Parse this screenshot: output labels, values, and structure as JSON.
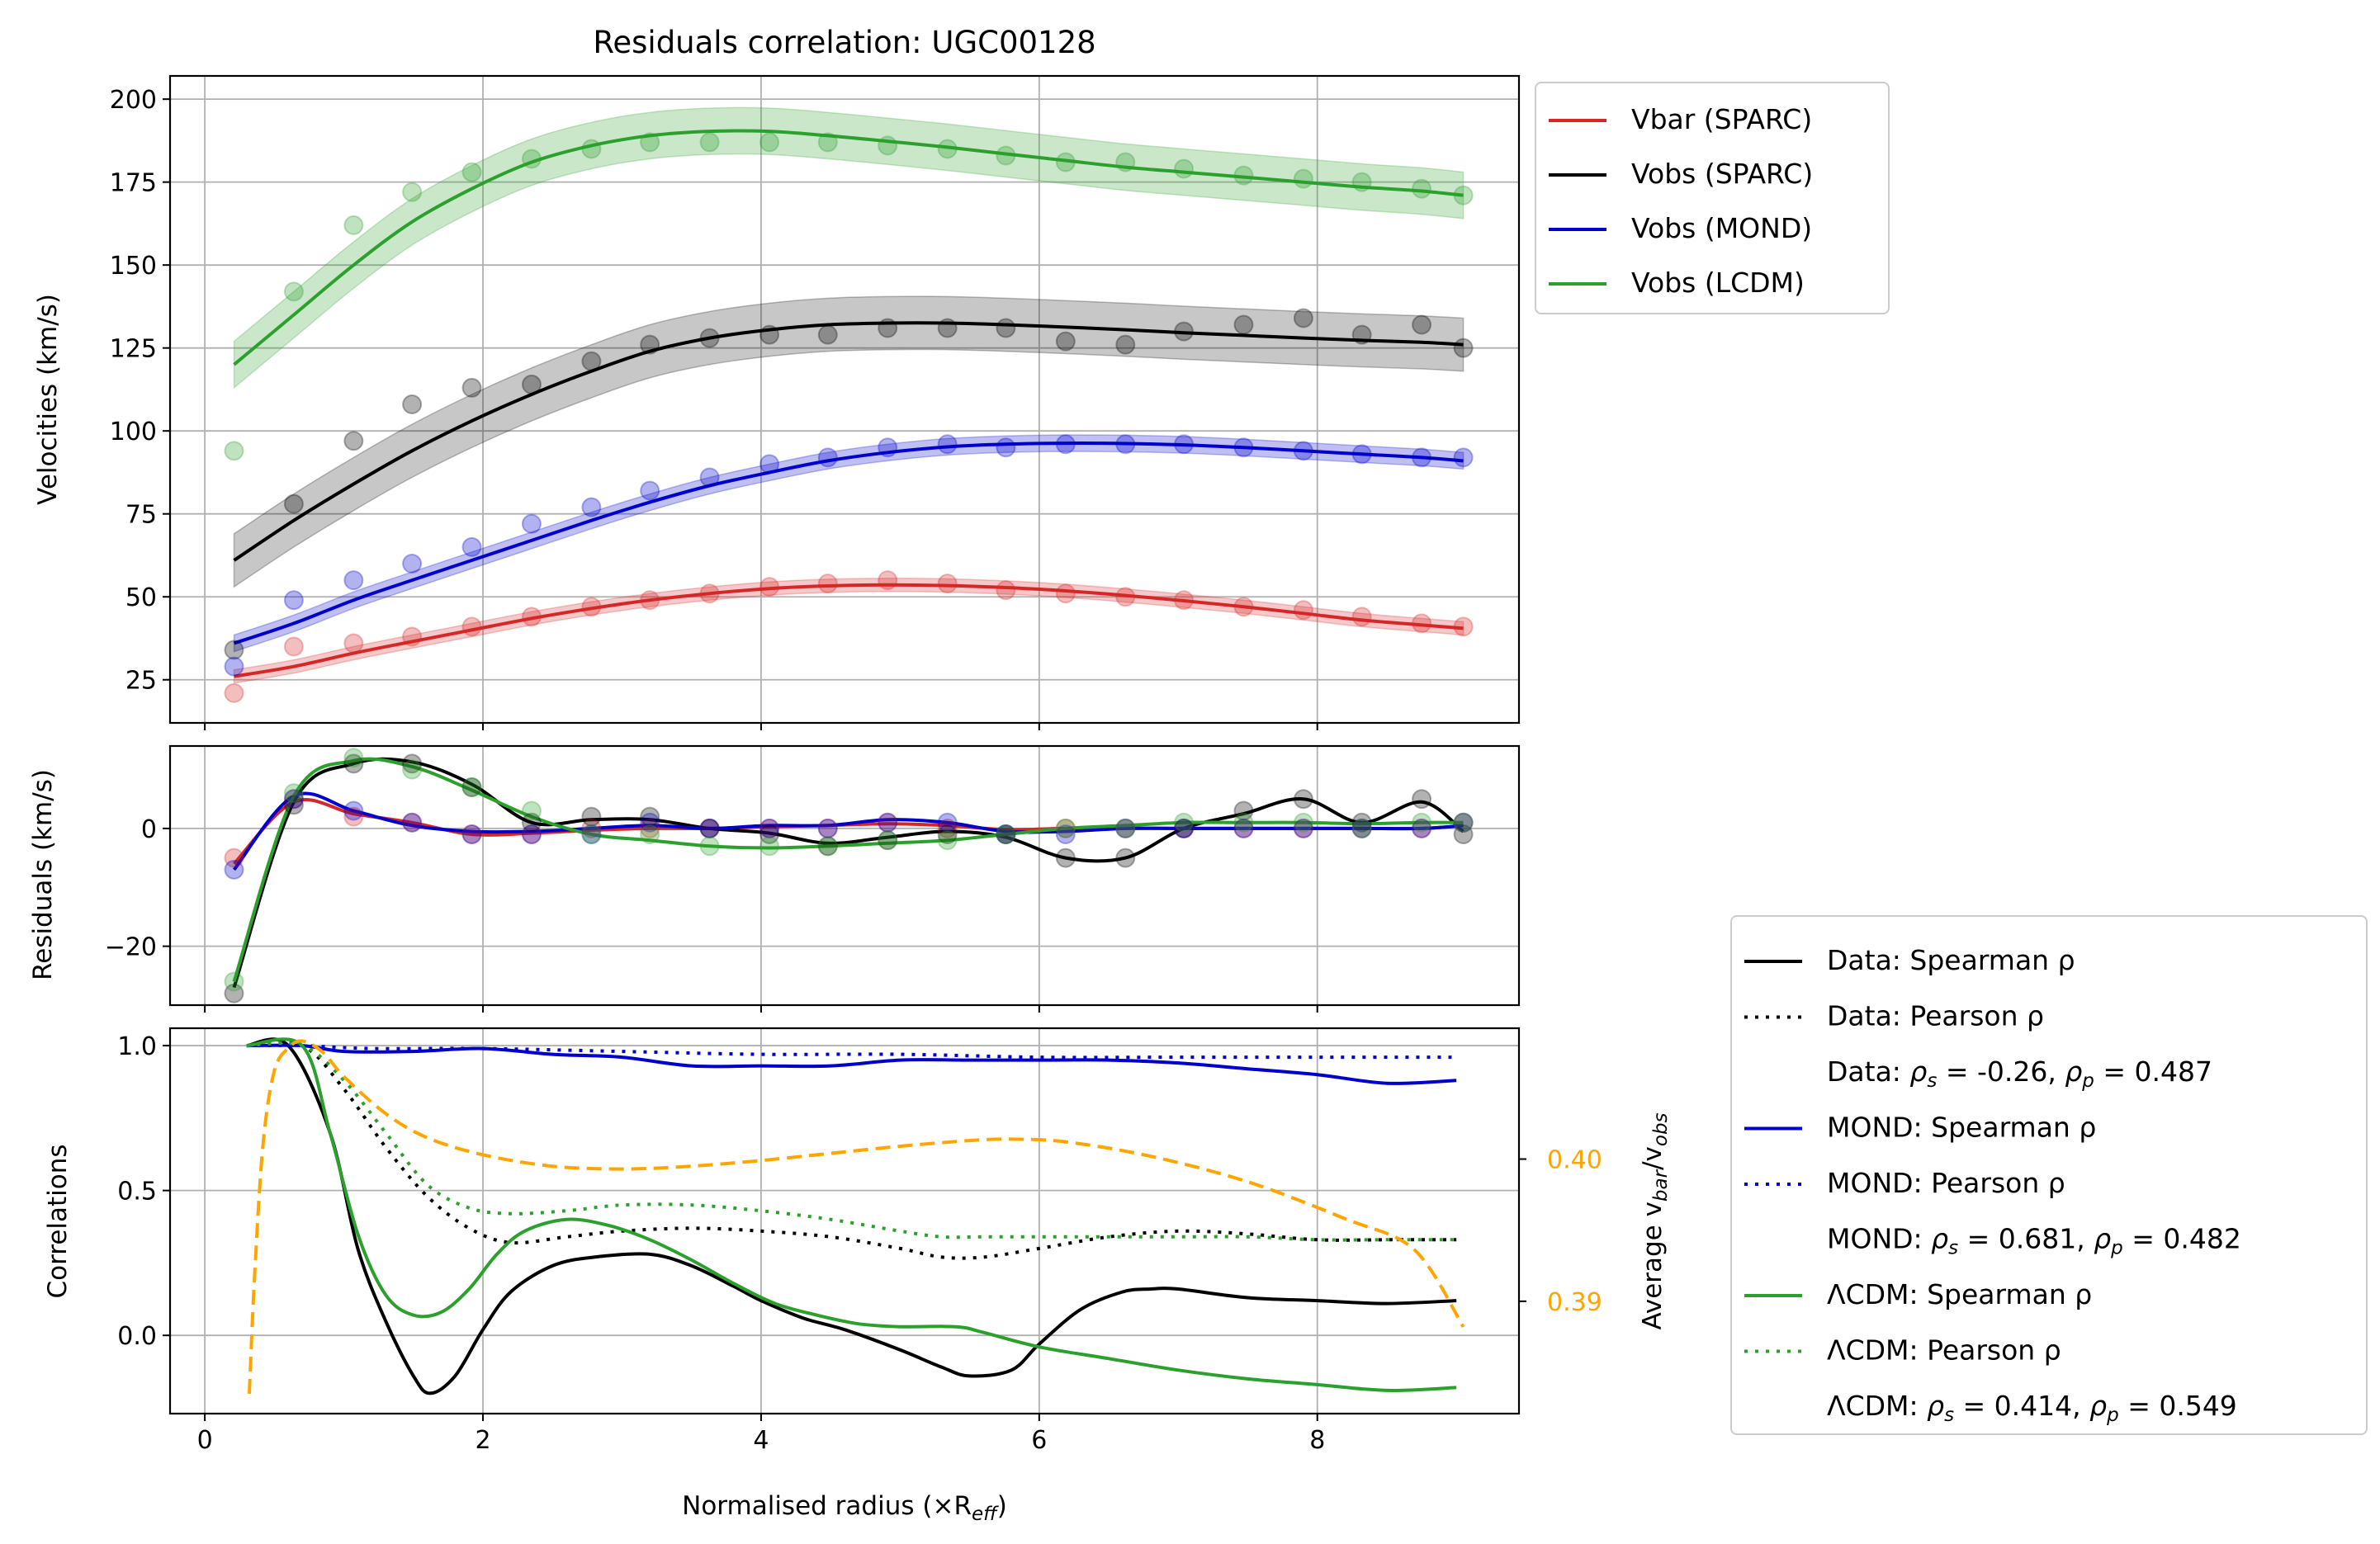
{
  "chart_data": [
    {
      "panel": "velocities",
      "type": "line",
      "title": "Residuals correlation: UGC00128",
      "ylabel": "Velocities (km/s)",
      "xlim": [
        -0.25,
        9.45
      ],
      "ylim": [
        12,
        207
      ],
      "xticks": [
        0,
        2,
        4,
        6,
        8
      ],
      "yticks": [
        25,
        50,
        75,
        100,
        125,
        150,
        175,
        200
      ],
      "grid": true,
      "legend_position": "outside top-right",
      "legend": [
        {
          "label": "Vbar (SPARC)",
          "color": "#d62728",
          "style": "solid"
        },
        {
          "label": "Vobs (SPARC)",
          "color": "#000000",
          "style": "solid"
        },
        {
          "label": "Vobs (MOND)",
          "color": "#0000cc",
          "style": "solid"
        },
        {
          "label": "Vobs (LCDM)",
          "color": "#2ca02c",
          "style": "solid"
        }
      ],
      "x": [
        0.21,
        0.64,
        1.07,
        1.49,
        1.92,
        2.35,
        2.78,
        3.2,
        3.63,
        4.06,
        4.48,
        4.91,
        5.34,
        5.76,
        6.19,
        6.62,
        7.04,
        7.47,
        7.9,
        8.32,
        8.75,
        9.05
      ],
      "series": [
        {
          "name": "Vbar (SPARC)",
          "color": "#d62728",
          "band": 2,
          "points": [
            21,
            35,
            36,
            38,
            41,
            44,
            47,
            49,
            51,
            53,
            54,
            55,
            54,
            52,
            51,
            50,
            49,
            47,
            46,
            44,
            42,
            41
          ],
          "curve": [
            26,
            29,
            33,
            36.5,
            40,
            43.5,
            46.5,
            49,
            51,
            52.5,
            53.3,
            53.6,
            53.4,
            52.8,
            51.8,
            50.4,
            48.8,
            47,
            45,
            43,
            41.5,
            40.5
          ]
        },
        {
          "name": "Vobs (SPARC)",
          "color": "#000000",
          "band": 8,
          "points": [
            34,
            78,
            97,
            108,
            113,
            114,
            121,
            126,
            128,
            129,
            129,
            131,
            131,
            131,
            127,
            126,
            130,
            132,
            134,
            129,
            132,
            125
          ],
          "curve": [
            61,
            73,
            84,
            94,
            103,
            111,
            118,
            124,
            128,
            130.5,
            132,
            132.5,
            132.5,
            132,
            131.3,
            130.5,
            129.6,
            128.8,
            128,
            127.3,
            126.7,
            126
          ]
        },
        {
          "name": "Vobs (MOND)",
          "color": "#0000cc",
          "band": 2.5,
          "points": [
            29,
            49,
            55,
            60,
            65,
            72,
            77,
            82,
            86,
            90,
            92,
            95,
            96,
            95,
            96,
            96,
            96,
            95,
            94,
            93,
            92,
            92
          ],
          "curve": [
            36,
            42,
            49,
            55,
            61,
            67,
            73,
            78.5,
            83.5,
            87.5,
            91,
            93.5,
            95.2,
            96,
            96.3,
            96.2,
            95.8,
            95,
            94,
            93,
            92,
            91
          ]
        },
        {
          "name": "Vobs (LCDM)",
          "color": "#2ca02c",
          "band": 7,
          "points": [
            94,
            142,
            162,
            172,
            178,
            182,
            185,
            187,
            187,
            187,
            187,
            186,
            185,
            183,
            181,
            181,
            179,
            177,
            176,
            175,
            173,
            171
          ],
          "curve": [
            120,
            135,
            150,
            163,
            173,
            181,
            186,
            189,
            190.3,
            190.3,
            189,
            187.3,
            185.5,
            183.5,
            181.5,
            179.5,
            178,
            176.5,
            175,
            173.5,
            172.3,
            171
          ]
        }
      ]
    },
    {
      "panel": "residuals",
      "type": "line",
      "ylabel": "Residuals (km/s)",
      "xlim": [
        -0.25,
        9.45
      ],
      "ylim": [
        -30,
        14
      ],
      "xticks": [
        0,
        2,
        4,
        6,
        8
      ],
      "yticks": [
        -20,
        0
      ],
      "ytick_labels": [
        "−20",
        "0"
      ],
      "grid": true,
      "x": [
        0.21,
        0.64,
        1.07,
        1.49,
        1.92,
        2.35,
        2.78,
        3.2,
        3.63,
        4.06,
        4.48,
        4.91,
        5.34,
        5.76,
        6.19,
        6.62,
        7.04,
        7.47,
        7.9,
        8.32,
        8.75,
        9.05
      ],
      "series": [
        {
          "name": "Vbar",
          "color": "#d62728",
          "points": [
            -5,
            5,
            2,
            1,
            -1,
            -1,
            0,
            0,
            0,
            0,
            0,
            1,
            0,
            -1,
            0,
            0,
            0,
            0,
            0,
            0,
            0,
            1
          ],
          "curve": [
            -6,
            4.5,
            2.5,
            1,
            -1,
            -0.8,
            -0.3,
            0,
            0,
            0.3,
            0.5,
            0.8,
            0.5,
            -0.2,
            0,
            0,
            0,
            0,
            0,
            0,
            0,
            0.5
          ]
        },
        {
          "name": "SPARC",
          "color": "#000000",
          "points": [
            -28,
            4,
            11,
            11,
            7,
            1,
            2,
            2,
            0,
            -1,
            -3,
            -2,
            -1,
            -1,
            -5,
            -5,
            0,
            3,
            5,
            1,
            5,
            -1
          ],
          "curve": [
            -27,
            4.5,
            11,
            11.3,
            7.5,
            1,
            1.5,
            1.5,
            0,
            -0.8,
            -2.5,
            -1.5,
            -0.5,
            -1.5,
            -5,
            -5,
            0,
            2.5,
            5,
            1,
            4.5,
            -0.5
          ]
        },
        {
          "name": "MOND",
          "color": "#0000cc",
          "points": [
            -7,
            5,
            3,
            1,
            -1,
            -1,
            -1,
            1,
            0,
            0,
            0,
            1,
            1,
            -1,
            -1,
            0,
            0,
            0,
            0,
            0,
            0,
            1
          ],
          "curve": [
            -7,
            5.5,
            3,
            0.5,
            -0.5,
            -0.5,
            0,
            0.5,
            0,
            0.5,
            0.5,
            1.5,
            1,
            -0.5,
            -0.5,
            0,
            0,
            0,
            0,
            0,
            0,
            0.5
          ]
        },
        {
          "name": "LCDM",
          "color": "#2ca02c",
          "points": [
            -26,
            6,
            12,
            10,
            7,
            3,
            -1,
            -1,
            -3,
            -3,
            -3,
            -2,
            -2,
            -1,
            0,
            0,
            1,
            1,
            1,
            0,
            1,
            1
          ],
          "curve": [
            -26,
            5.5,
            11.5,
            10.5,
            6.5,
            2,
            -1,
            -2,
            -3,
            -3.3,
            -3,
            -2.5,
            -2,
            -1,
            0,
            0.5,
            1,
            1,
            1,
            0.8,
            1,
            1
          ]
        }
      ]
    },
    {
      "panel": "correlations",
      "type": "line",
      "ylabel": "Correlations",
      "xlabel": "Normalised radius (×R",
      "xlabel_sub": "eff",
      "xlabel_close": ")",
      "xlim": [
        -0.25,
        9.45
      ],
      "ylim": [
        -0.27,
        1.06
      ],
      "xticks": [
        0,
        2,
        4,
        6,
        8
      ],
      "yticks": [
        0,
        0.5,
        1
      ],
      "ytick_labels": [
        "0.0",
        "0.5",
        "1.0"
      ],
      "grid": true,
      "secondary_axis": {
        "label_prefix": "Average v",
        "label_sub_num": "bar",
        "label_div": "/v",
        "label_sub_den": "obs",
        "color": "#ffa500",
        "ylim": [
          0.3821,
          0.4092
        ],
        "ticks": [
          0.39,
          0.4
        ],
        "tick_labels": [
          "0.39",
          "0.40"
        ]
      },
      "legend_position": "outside bottom-right",
      "legend": [
        {
          "label": "Data: Spearman ρ",
          "color": "#000000",
          "style": "solid"
        },
        {
          "label": "Data: Pearson ρ",
          "color": "#000000",
          "style": "dotted"
        },
        {
          "label": "Data: ρs = -0.26, ρp = 0.487",
          "style": "none",
          "prefix": "Data: ",
          "rs": "-0.26",
          "rp": "0.487"
        },
        {
          "label": "MOND: Spearman ρ",
          "color": "#0000cc",
          "style": "solid"
        },
        {
          "label": "MOND: Pearson ρ",
          "color": "#0000cc",
          "style": "dotted"
        },
        {
          "label": "MOND: ρs = 0.681, ρp = 0.482",
          "style": "none",
          "prefix": "MOND: ",
          "rs": "0.681",
          "rp": "0.482"
        },
        {
          "label": "ΛCDM: Spearman ρ",
          "color": "#2ca02c",
          "style": "solid"
        },
        {
          "label": "ΛCDM: Pearson ρ",
          "color": "#2ca02c",
          "style": "dotted"
        },
        {
          "label": "ΛCDM: ρs = 0.414, ρp = 0.549",
          "style": "none",
          "prefix": "ΛCDM: ",
          "rs": "0.414",
          "rp": "0.549"
        }
      ],
      "series": [
        {
          "name": "Data: Spearman ρ",
          "color": "#000000",
          "dash": "solid",
          "x": [
            0.3,
            0.6,
            0.9,
            1.1,
            1.3,
            1.5,
            1.62,
            1.8,
            2.0,
            2.2,
            2.5,
            2.8,
            3.2,
            3.5,
            3.8,
            4.0,
            4.3,
            4.6,
            5.0,
            5.3,
            5.5,
            5.8,
            6.0,
            6.3,
            6.6,
            6.8,
            7.0,
            7.5,
            8.0,
            8.5,
            9.0
          ],
          "y": [
            1.0,
            1.0,
            0.7,
            0.3,
            0.05,
            -0.14,
            -0.2,
            -0.14,
            0.02,
            0.15,
            0.24,
            0.27,
            0.28,
            0.24,
            0.17,
            0.12,
            0.06,
            0.02,
            -0.05,
            -0.11,
            -0.14,
            -0.12,
            -0.03,
            0.09,
            0.15,
            0.16,
            0.16,
            0.13,
            0.12,
            0.11,
            0.12
          ]
        },
        {
          "name": "Data: Pearson ρ",
          "color": "#000000",
          "dash": "dotted",
          "x": [
            0.3,
            0.7,
            1.0,
            1.3,
            1.6,
            1.9,
            2.2,
            2.6,
            3.0,
            3.5,
            4.0,
            4.5,
            5.0,
            5.3,
            5.6,
            6.0,
            6.5,
            7.0,
            7.5,
            8.0,
            8.5,
            9.0
          ],
          "y": [
            1.0,
            1.0,
            0.85,
            0.65,
            0.48,
            0.37,
            0.32,
            0.34,
            0.36,
            0.37,
            0.36,
            0.34,
            0.3,
            0.27,
            0.27,
            0.3,
            0.34,
            0.36,
            0.35,
            0.33,
            0.33,
            0.33
          ]
        },
        {
          "name": "MOND: Spearman ρ",
          "color": "#0000cc",
          "dash": "solid",
          "x": [
            0.3,
            0.7,
            1.0,
            1.5,
            2.0,
            2.5,
            3.0,
            3.5,
            4.0,
            4.5,
            5.0,
            5.5,
            6.0,
            6.5,
            7.0,
            7.5,
            8.0,
            8.5,
            9.0
          ],
          "y": [
            1.0,
            1.0,
            0.98,
            0.98,
            0.99,
            0.97,
            0.96,
            0.93,
            0.93,
            0.93,
            0.95,
            0.95,
            0.95,
            0.95,
            0.94,
            0.92,
            0.9,
            0.87,
            0.88
          ]
        },
        {
          "name": "MOND: Pearson ρ",
          "color": "#0000cc",
          "dash": "dotted",
          "x": [
            0.3,
            0.7,
            1.2,
            2.0,
            3.0,
            4.0,
            5.0,
            6.0,
            7.0,
            8.0,
            9.0
          ],
          "y": [
            1.0,
            1.0,
            0.99,
            0.99,
            0.98,
            0.97,
            0.97,
            0.96,
            0.96,
            0.96,
            0.96
          ]
        },
        {
          "name": "ΛCDM: Spearman ρ",
          "color": "#2ca02c",
          "dash": "solid",
          "x": [
            0.3,
            0.7,
            0.9,
            1.1,
            1.3,
            1.5,
            1.7,
            1.9,
            2.1,
            2.3,
            2.6,
            2.9,
            3.2,
            3.5,
            3.8,
            4.1,
            4.4,
            4.7,
            5.0,
            5.4,
            5.6,
            6.0,
            6.5,
            7.0,
            7.5,
            8.0,
            8.5,
            9.0
          ],
          "y": [
            1.0,
            1.0,
            0.7,
            0.35,
            0.14,
            0.07,
            0.08,
            0.16,
            0.28,
            0.36,
            0.4,
            0.38,
            0.33,
            0.26,
            0.18,
            0.11,
            0.07,
            0.04,
            0.03,
            0.03,
            0.01,
            -0.04,
            -0.08,
            -0.12,
            -0.15,
            -0.17,
            -0.19,
            -0.18
          ]
        },
        {
          "name": "ΛCDM: Pearson ρ",
          "color": "#2ca02c",
          "dash": "dotted",
          "x": [
            0.3,
            0.7,
            1.0,
            1.3,
            1.6,
            1.9,
            2.2,
            2.6,
            3.0,
            3.5,
            4.0,
            4.5,
            5.0,
            5.3,
            5.6,
            6.0,
            6.5,
            7.0,
            7.5,
            8.0,
            8.5,
            9.0
          ],
          "y": [
            1.0,
            1.0,
            0.88,
            0.7,
            0.52,
            0.44,
            0.42,
            0.43,
            0.45,
            0.45,
            0.43,
            0.4,
            0.36,
            0.34,
            0.34,
            0.34,
            0.34,
            0.34,
            0.34,
            0.33,
            0.33,
            0.33
          ]
        },
        {
          "name": "Average vbar/vobs",
          "color": "#ffa500",
          "dash": "dashed",
          "axis": "secondary",
          "x": [
            0.32,
            0.36,
            0.42,
            0.5,
            0.6,
            0.7,
            0.85,
            1.0,
            1.3,
            1.6,
            2.0,
            2.5,
            3.0,
            3.5,
            4.0,
            4.5,
            5.0,
            5.5,
            5.8,
            6.2,
            6.8,
            7.5,
            8.2,
            8.7,
            9.05
          ],
          "y": [
            0.3835,
            0.3922,
            0.4012,
            0.4062,
            0.4078,
            0.4083,
            0.4075,
            0.4058,
            0.4032,
            0.4015,
            0.4003,
            0.3995,
            0.3993,
            0.3995,
            0.3999,
            0.4004,
            0.4009,
            0.4013,
            0.4014,
            0.4012,
            0.4002,
            0.3984,
            0.3958,
            0.3936,
            0.3882
          ]
        }
      ]
    }
  ]
}
